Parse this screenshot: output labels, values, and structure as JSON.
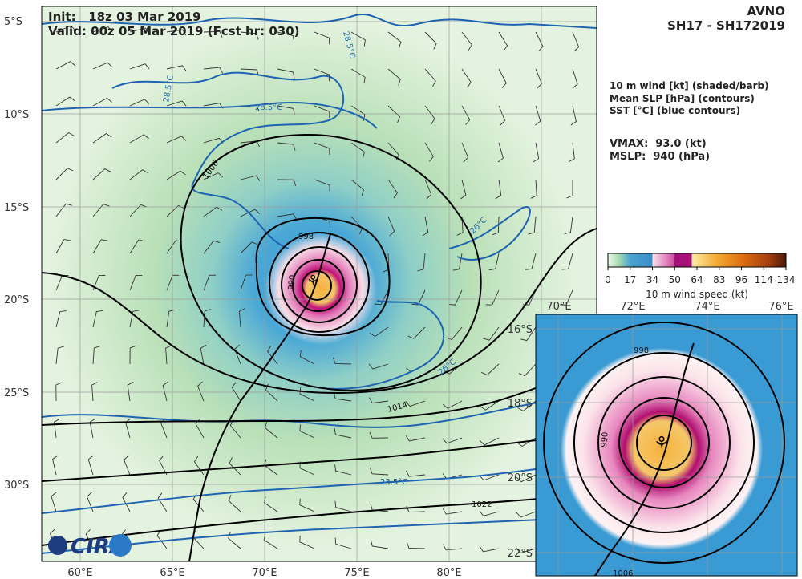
{
  "header": {
    "init": "Init:   18z 03 Mar 2019",
    "valid": "Valid: 00z 05 Mar 2019 (Fcst hr: 030)",
    "model": "AVNO",
    "storm": "SH17 - SH172019"
  },
  "legend": [
    "10 m wind [kt] (shaded/barb)",
    "Mean SLP [hPa] (contours)",
    "SST [°C] (blue contours)"
  ],
  "stats": {
    "vmax": "VMAX:  93.0 (kt)",
    "mslp": "MSLP:  940 (hPa)"
  },
  "colorbar": {
    "ticks": [
      0,
      17,
      34,
      50,
      64,
      83,
      96,
      114,
      134
    ],
    "label": "10 m wind speed (kt)"
  },
  "map": {
    "lon_labels": [
      "60°E",
      "65°E",
      "70°E",
      "75°E",
      "80°E"
    ],
    "lat_labels": [
      "5°S",
      "10°S",
      "15°S",
      "20°S",
      "25°S",
      "30°S"
    ],
    "slp_labels": [
      "1006",
      "998",
      "990",
      "1014",
      "1022"
    ],
    "sst_labels": [
      "28.5°C",
      "28.5°C",
      "28.5°C",
      "26°C",
      "26°C",
      "23.5°C"
    ]
  },
  "inset": {
    "lon_labels": [
      "70°E",
      "72°E",
      "74°E",
      "76°E"
    ],
    "lat_labels": [
      "16°S",
      "18°S",
      "20°S",
      "22°S"
    ],
    "slp_labels": [
      "998",
      "990",
      "1006"
    ]
  },
  "logo": "CIRA"
}
